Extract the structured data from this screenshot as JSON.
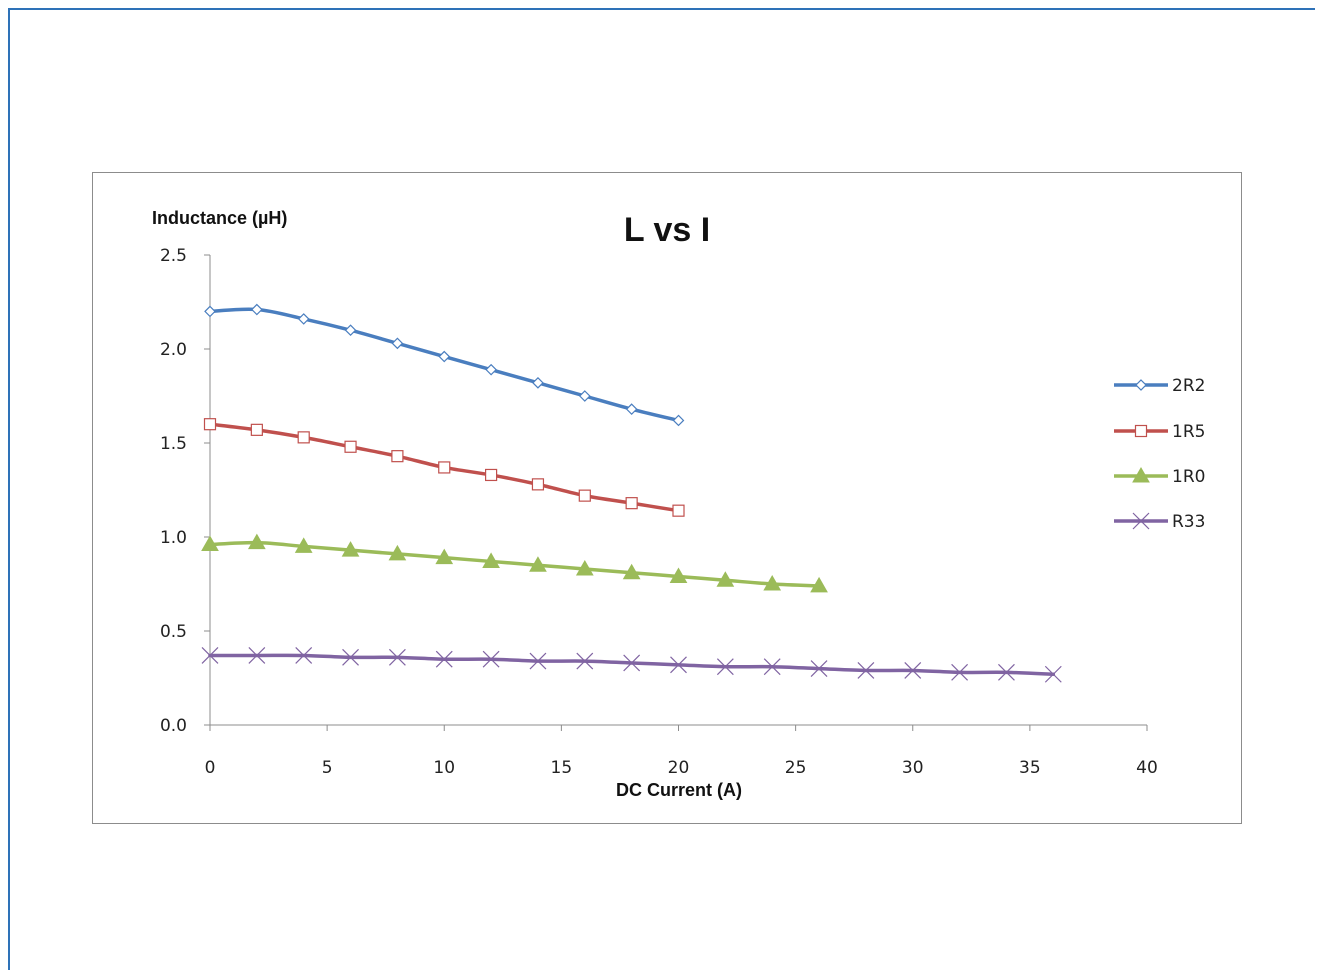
{
  "chart_data": {
    "type": "line",
    "title": "L vs I",
    "xlabel": "DC Current (A)",
    "ylabel": "Inductance (µH)",
    "xlim": [
      0,
      40
    ],
    "ylim": [
      0,
      2.5
    ],
    "x_ticks": [
      "0",
      "5",
      "10",
      "15",
      "20",
      "25",
      "30",
      "35",
      "40"
    ],
    "y_ticks": [
      "0.0",
      "0.5",
      "1.0",
      "1.5",
      "2.0",
      "2.5"
    ],
    "grid": false,
    "legend_position": "right",
    "series": [
      {
        "name": "2R2",
        "color": "#4a7ebf",
        "marker": "diamond",
        "x": [
          0,
          2,
          4,
          6,
          8,
          10,
          12,
          14,
          16,
          18,
          20
        ],
        "y": [
          2.2,
          2.21,
          2.16,
          2.1,
          2.03,
          1.96,
          1.89,
          1.82,
          1.75,
          1.68,
          1.62
        ]
      },
      {
        "name": "1R5",
        "color": "#c0504d",
        "marker": "square",
        "x": [
          0,
          2,
          4,
          6,
          8,
          10,
          12,
          14,
          16,
          18,
          20
        ],
        "y": [
          1.6,
          1.57,
          1.53,
          1.48,
          1.43,
          1.37,
          1.33,
          1.28,
          1.22,
          1.18,
          1.14
        ]
      },
      {
        "name": "1R0",
        "color": "#9bbb59",
        "marker": "triangle",
        "x": [
          0,
          2,
          4,
          6,
          8,
          10,
          12,
          14,
          16,
          18,
          20,
          22,
          24,
          26
        ],
        "y": [
          0.96,
          0.97,
          0.95,
          0.93,
          0.91,
          0.89,
          0.87,
          0.85,
          0.83,
          0.81,
          0.79,
          0.77,
          0.75,
          0.74
        ]
      },
      {
        "name": "R33",
        "color": "#8064a2",
        "marker": "x",
        "x": [
          0,
          2,
          4,
          6,
          8,
          10,
          12,
          14,
          16,
          18,
          20,
          22,
          24,
          26,
          28,
          30,
          32,
          34,
          36
        ],
        "y": [
          0.37,
          0.37,
          0.37,
          0.36,
          0.36,
          0.35,
          0.35,
          0.34,
          0.34,
          0.33,
          0.32,
          0.31,
          0.31,
          0.3,
          0.29,
          0.29,
          0.28,
          0.28,
          0.27
        ]
      }
    ]
  }
}
